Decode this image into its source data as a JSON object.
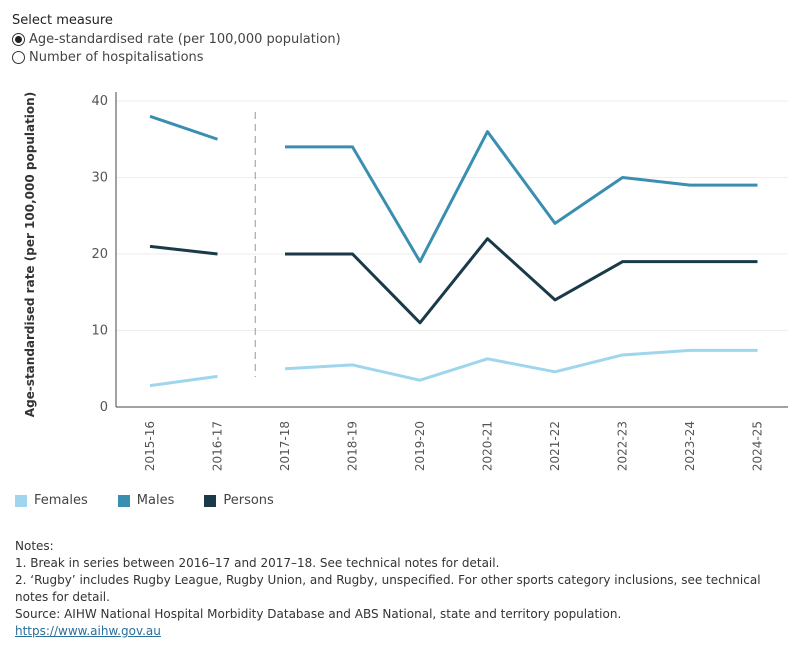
{
  "controls": {
    "title": "Select measure",
    "options": [
      {
        "label": "Age-standardised rate (per 100,000 population)",
        "checked": true
      },
      {
        "label": "Number of hospitalisations",
        "checked": false
      }
    ]
  },
  "chart_data": {
    "type": "line",
    "ylabel": "Age-standardised rate (per 100,000 population)",
    "xlabel": "",
    "categories": [
      "2015-16",
      "2016-17",
      "2017-18",
      "2018-19",
      "2019-20",
      "2020-21",
      "2021-22",
      "2022-23",
      "2023-24",
      "2024-25"
    ],
    "ylim": [
      0,
      40
    ],
    "yticks": [
      0,
      10,
      20,
      30,
      40
    ],
    "series_break_after": "2016-17",
    "series": [
      {
        "name": "Females",
        "color": "#9fd6ee",
        "values": [
          2.8,
          4.0,
          5.0,
          5.5,
          3.5,
          6.3,
          4.6,
          6.8,
          7.4,
          7.4
        ]
      },
      {
        "name": "Males",
        "color": "#3a8fb0",
        "values": [
          38.0,
          35.0,
          34.0,
          34.0,
          19.0,
          36.0,
          24.0,
          30.0,
          29.0,
          29.0
        ]
      },
      {
        "name": "Persons",
        "color": "#1a3a4a",
        "values": [
          21.0,
          20.0,
          20.0,
          20.0,
          11.0,
          22.0,
          14.0,
          19.0,
          19.0,
          19.0
        ]
      }
    ],
    "legend_position": "bottom-left"
  },
  "notes": {
    "heading": "Notes:",
    "items": [
      "1. Break in series between 2016–17 and 2017–18. See technical notes for detail.",
      "2. ‘Rugby’ includes Rugby League, Rugby Union, and Rugby, unspecified. For other sports category inclusions, see technical notes for detail."
    ],
    "source": "Source: AIHW National Hospital Morbidity Database and ABS National, state and territory population.",
    "link": "https://www.aihw.gov.au"
  }
}
